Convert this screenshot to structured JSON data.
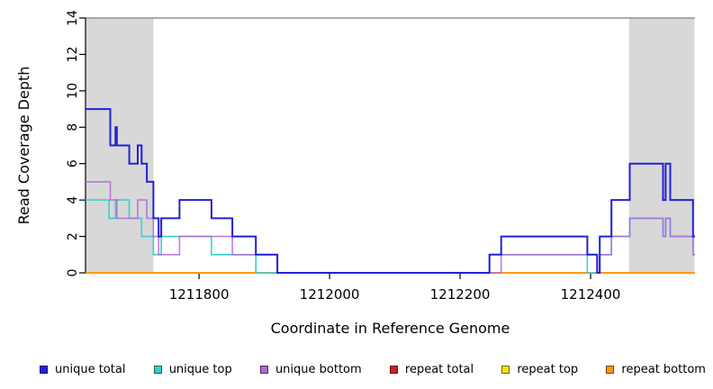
{
  "chart_data": {
    "type": "step-line",
    "title": "",
    "xlabel": "Coordinate in Reference Genome",
    "ylabel": "Read Coverage Depth",
    "xlim": [
      1211626,
      1212560
    ],
    "ylim": [
      0,
      14
    ],
    "x_end": 1212560,
    "x_ticks": [
      1211800,
      1212000,
      1212200,
      1212400
    ],
    "x_tick_labels": [
      "1211800",
      "1212000",
      "1212200",
      "1212400"
    ],
    "y_ticks": [
      0,
      2,
      4,
      6,
      8,
      10,
      12,
      14
    ],
    "y_tick_labels": [
      "0",
      "2",
      "4",
      "6",
      "8",
      "10",
      "12",
      "14"
    ],
    "grid": false,
    "legend_position": "bottom",
    "colors": {
      "shade": "#d8d8d8",
      "depth_max_line": "#909090",
      "axis": "#000000",
      "unique_total": "#2121d8",
      "unique_top": "#35d0d0",
      "unique_bottom": "#b266d9",
      "repeat_total": "#cc2222",
      "repeat_top": "#f2e50e",
      "repeat_bottom": "#ff9914"
    },
    "shaded_regions": [
      [
        1211626,
        1211730
      ],
      [
        1212459,
        1212559
      ]
    ],
    "depth_max_line": {
      "depth": 14
    },
    "series": [
      {
        "key": "repeat-total",
        "name": "repeat total",
        "color": "#cc2222",
        "width": 1.5,
        "opacity": 1,
        "steps": [
          [
            1211626,
            0
          ]
        ]
      },
      {
        "key": "repeat-top",
        "name": "repeat top",
        "color": "#f2e50e",
        "width": 1.5,
        "opacity": 1,
        "steps": [
          [
            1211626,
            0
          ]
        ]
      },
      {
        "key": "repeat-bottom",
        "name": "repeat bottom",
        "color": "#ff9914",
        "width": 2,
        "opacity": 1,
        "steps": [
          [
            1211626,
            0
          ]
        ]
      },
      {
        "key": "unique-top",
        "name": "unique top",
        "color": "#35d0d0",
        "width": 1.6,
        "opacity": 1,
        "steps": [
          [
            1211626,
            4
          ],
          [
            1211662,
            3
          ],
          [
            1211672,
            4
          ],
          [
            1211693,
            3
          ],
          [
            1211712,
            2
          ],
          [
            1211730,
            1
          ],
          [
            1211742,
            2
          ],
          [
            1211819,
            1
          ],
          [
            1211887,
            0
          ],
          [
            1212245,
            1
          ],
          [
            1212395,
            0
          ],
          [
            1212414,
            1
          ],
          [
            1212432,
            2
          ],
          [
            1212460,
            3
          ],
          [
            1212511,
            2
          ],
          [
            1212515,
            3
          ],
          [
            1212522,
            2
          ],
          [
            1212557,
            1
          ]
        ]
      },
      {
        "key": "unique-bottom",
        "name": "unique bottom",
        "color": "#b266d9",
        "width": 1.6,
        "opacity": 0.85,
        "steps": [
          [
            1211626,
            5
          ],
          [
            1211664,
            4
          ],
          [
            1211674,
            3
          ],
          [
            1211706,
            4
          ],
          [
            1211720,
            3
          ],
          [
            1211730,
            2
          ],
          [
            1211738,
            1
          ],
          [
            1211770,
            2
          ],
          [
            1211851,
            1
          ],
          [
            1211920,
            0
          ],
          [
            1212263,
            1
          ],
          [
            1212410,
            0
          ],
          [
            1212414,
            1
          ],
          [
            1212432,
            2
          ],
          [
            1212460,
            3
          ],
          [
            1212511,
            2
          ],
          [
            1212515,
            3
          ],
          [
            1212522,
            2
          ],
          [
            1212557,
            1
          ]
        ]
      },
      {
        "key": "unique-total",
        "name": "unique total",
        "color": "#2121d8",
        "width": 2,
        "opacity": 1,
        "steps": [
          [
            1211626,
            9
          ],
          [
            1211664,
            7
          ],
          [
            1211672,
            8
          ],
          [
            1211674,
            7
          ],
          [
            1211693,
            6
          ],
          [
            1211706,
            7
          ],
          [
            1211712,
            6
          ],
          [
            1211720,
            5
          ],
          [
            1211730,
            3
          ],
          [
            1211738,
            2
          ],
          [
            1211742,
            3
          ],
          [
            1211770,
            4
          ],
          [
            1211819,
            3
          ],
          [
            1211851,
            2
          ],
          [
            1211887,
            1
          ],
          [
            1211920,
            0
          ],
          [
            1212245,
            1
          ],
          [
            1212263,
            2
          ],
          [
            1212395,
            1
          ],
          [
            1212410,
            0
          ],
          [
            1212414,
            2
          ],
          [
            1212432,
            4
          ],
          [
            1212460,
            6
          ],
          [
            1212511,
            4
          ],
          [
            1212515,
            6
          ],
          [
            1212522,
            4
          ],
          [
            1212557,
            2
          ]
        ]
      }
    ],
    "legend": [
      {
        "label": "unique total",
        "color": "#2121d8"
      },
      {
        "label": "unique top",
        "color": "#35d0d0"
      },
      {
        "label": "unique bottom",
        "color": "#b266d9"
      },
      {
        "label": "repeat total",
        "color": "#cc2222"
      },
      {
        "label": "repeat top",
        "color": "#f2e50e"
      },
      {
        "label": "repeat bottom",
        "color": "#ff9914"
      }
    ]
  }
}
